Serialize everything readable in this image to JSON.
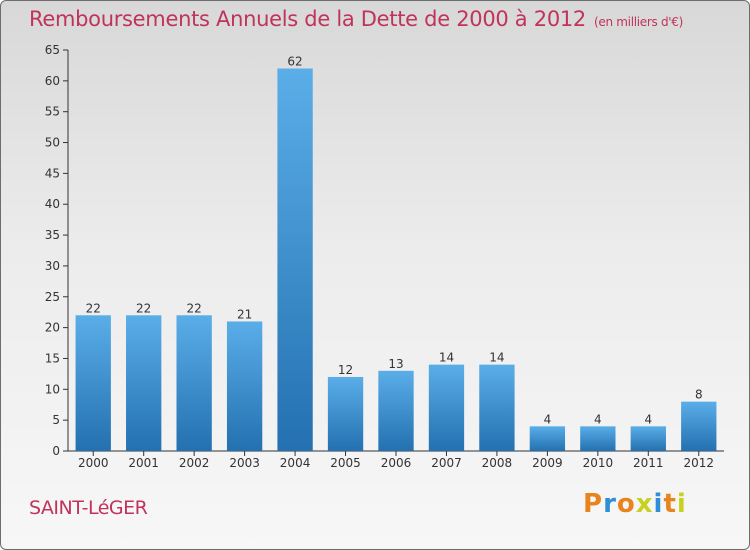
{
  "title": "Remboursements Annuels de la Dette de 2000 à 2012",
  "subtitle": "(en milliers d'€)",
  "commune": "SAINT-LéGER",
  "logo": {
    "text": "Proxiti",
    "colors": [
      "#e8841c",
      "#2f8fd6",
      "#e8841c",
      "#c7d21e",
      "#2f8fd6",
      "#e8841c",
      "#c7d21e"
    ]
  },
  "colors": {
    "bar_top": "#5aaee8",
    "bar_bottom": "#2470b0",
    "title": "#c0335a",
    "axis": "#333333"
  },
  "chart_data": {
    "type": "bar",
    "categories": [
      "2000",
      "2001",
      "2002",
      "2003",
      "2004",
      "2005",
      "2006",
      "2007",
      "2008",
      "2009",
      "2010",
      "2011",
      "2012"
    ],
    "values": [
      22,
      22,
      22,
      21,
      62,
      12,
      13,
      14,
      14,
      4,
      4,
      4,
      8
    ],
    "title": "Remboursements Annuels de la Dette de 2000 à 2012",
    "xlabel": "",
    "ylabel": "",
    "ylim": [
      0,
      65
    ],
    "yticks": [
      0,
      5,
      10,
      15,
      20,
      25,
      30,
      35,
      40,
      45,
      50,
      55,
      60,
      65
    ],
    "grid": false,
    "data_labels": true
  }
}
